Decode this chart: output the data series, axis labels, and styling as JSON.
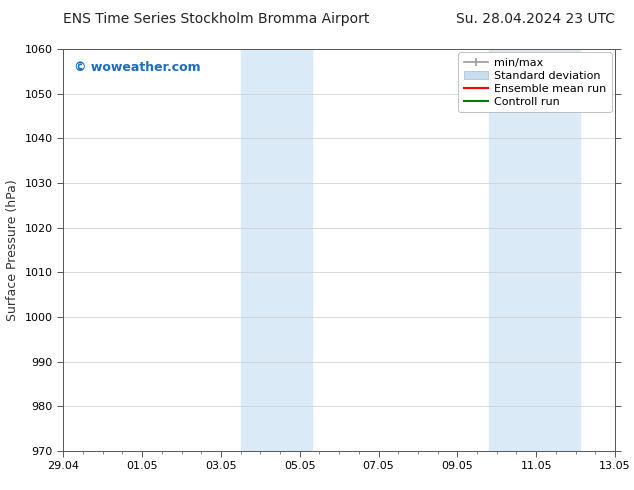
{
  "title_left": "ENS Time Series Stockholm Bromma Airport",
  "title_right": "Su. 28.04.2024 23 UTC",
  "ylabel": "Surface Pressure (hPa)",
  "ylim": [
    970,
    1060
  ],
  "yticks": [
    970,
    980,
    990,
    1000,
    1010,
    1020,
    1030,
    1040,
    1050,
    1060
  ],
  "xtick_labels": [
    "29.04",
    "01.05",
    "03.05",
    "05.05",
    "07.05",
    "09.05",
    "11.05",
    "13.05"
  ],
  "xtick_positions": [
    0,
    2,
    4,
    6,
    8,
    10,
    12,
    14
  ],
  "xlim": [
    0,
    14
  ],
  "shaded_bands": [
    {
      "x_start": 4.5,
      "x_end": 6.3
    },
    {
      "x_start": 10.8,
      "x_end": 13.1
    }
  ],
  "shaded_color": "#daeaf7",
  "background_color": "#ffffff",
  "plot_bg_color": "#ffffff",
  "grid_color": "#cccccc",
  "watermark_text": "© woweather.com",
  "watermark_color": "#1a6dbf",
  "legend_items": [
    {
      "label": "min/max"
    },
    {
      "label": "Standard deviation"
    },
    {
      "label": "Ensemble mean run"
    },
    {
      "label": "Controll run"
    }
  ],
  "legend_line_colors": [
    "#999999",
    "#c8ddf0",
    "#ff0000",
    "#008000"
  ],
  "title_fontsize": 10,
  "axis_label_fontsize": 9,
  "tick_fontsize": 8,
  "legend_fontsize": 8
}
